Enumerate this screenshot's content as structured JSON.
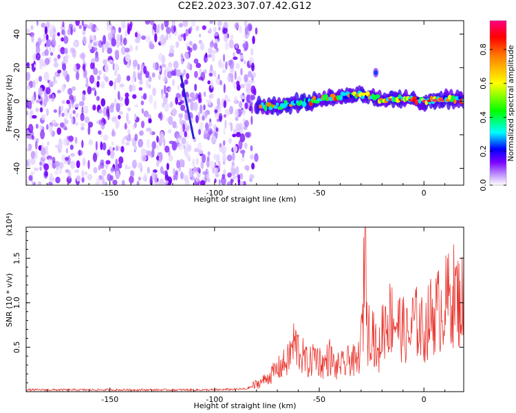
{
  "figure": {
    "title": "C2E2.2023.307.07.42.G12"
  },
  "chart_data": [
    {
      "type": "heatmap",
      "title": "C2E2.2023.307.07.42.G12",
      "xlabel": "Height of straight line (km)",
      "ylabel": "Frequency (Hz)",
      "xlim": [
        -190,
        19
      ],
      "ylim": [
        -50,
        48
      ],
      "x_ticks": [
        -150,
        -100,
        -50,
        0
      ],
      "y_ticks": [
        -40,
        -20,
        0,
        20,
        40
      ],
      "x_tick_labels": [
        "-150",
        "-100",
        "-50",
        "0"
      ],
      "y_tick_labels": [
        "-40",
        "-20",
        "0",
        "20",
        "40"
      ],
      "colorbar": {
        "label": "Normalized spectral amplitude",
        "range": [
          0,
          0.97
        ],
        "ticks": [
          0.0,
          0.2,
          0.4,
          0.6,
          0.8
        ],
        "tick_labels": [
          "0.0",
          "0.2",
          "0.4",
          "0.6",
          "0.8"
        ],
        "colormap": [
          "#ffffff",
          "#c39bff",
          "#7a00ff",
          "#0000ff",
          "#00ffff",
          "#00ff00",
          "#ffff00",
          "#ff8000",
          "#ff0000",
          "#ff0080"
        ]
      },
      "regions": {
        "noise_x": [
          -190,
          -80
        ],
        "noise_density": 0.55,
        "streak": {
          "x": [
            -116,
            -110
          ],
          "freq": [
            15,
            -22
          ]
        },
        "signal_band": [
          {
            "x": -80,
            "freq": -3
          },
          {
            "x": -70,
            "freq": -3
          },
          {
            "x": -60,
            "freq": -1
          },
          {
            "x": -50,
            "freq": 1
          },
          {
            "x": -40,
            "freq": 3
          },
          {
            "x": -30,
            "freq": 4
          },
          {
            "x": -20,
            "freq": 1
          },
          {
            "x": -10,
            "freq": 1
          },
          {
            "x": 0,
            "freq": 0
          },
          {
            "x": 10,
            "freq": 1
          },
          {
            "x": 19,
            "freq": 1
          }
        ],
        "signal_peak_x": [
          -18,
          10
        ],
        "spot": {
          "x": -23,
          "freq": 17
        }
      },
      "grid": false
    },
    {
      "type": "line",
      "xlabel": "Height of straight line (km)",
      "ylabel": "SNR (10 * v/v)",
      "y_multiplier": "(x10⁴)",
      "xlim": [
        -190,
        19
      ],
      "ylim": [
        0,
        1.85
      ],
      "x_ticks": [
        -150,
        -100,
        -50,
        0
      ],
      "y_ticks": [
        0.5,
        1.0,
        1.5
      ],
      "x_tick_labels": [
        "-150",
        "-100",
        "-50",
        "0"
      ],
      "y_tick_labels": [
        "0.5",
        "1.0",
        "1.5"
      ],
      "color": "#e8312a",
      "x": [
        -190,
        -160,
        -130,
        -100,
        -85,
        -80,
        -75,
        -70,
        -65,
        -62,
        -58,
        -55,
        -52,
        -50,
        -48,
        -45,
        -42,
        -40,
        -38,
        -35,
        -32,
        -30,
        -29,
        -28,
        -27,
        -25,
        -22,
        -20,
        -18,
        -15,
        -12,
        -10,
        -7,
        -5,
        -2,
        0,
        3,
        6,
        9,
        12,
        15,
        17,
        19
      ],
      "values": [
        0.02,
        0.02,
        0.02,
        0.02,
        0.03,
        0.08,
        0.15,
        0.25,
        0.35,
        0.55,
        0.4,
        0.3,
        0.42,
        0.35,
        0.3,
        0.4,
        0.25,
        0.32,
        0.28,
        0.38,
        0.3,
        0.55,
        0.9,
        1.85,
        0.6,
        0.8,
        0.35,
        0.7,
        0.8,
        0.85,
        0.75,
        0.7,
        0.6,
        0.8,
        0.75,
        0.65,
        0.85,
        0.9,
        0.95,
        1.05,
        1.1,
        1.0,
        1.05
      ],
      "grid": false
    }
  ]
}
